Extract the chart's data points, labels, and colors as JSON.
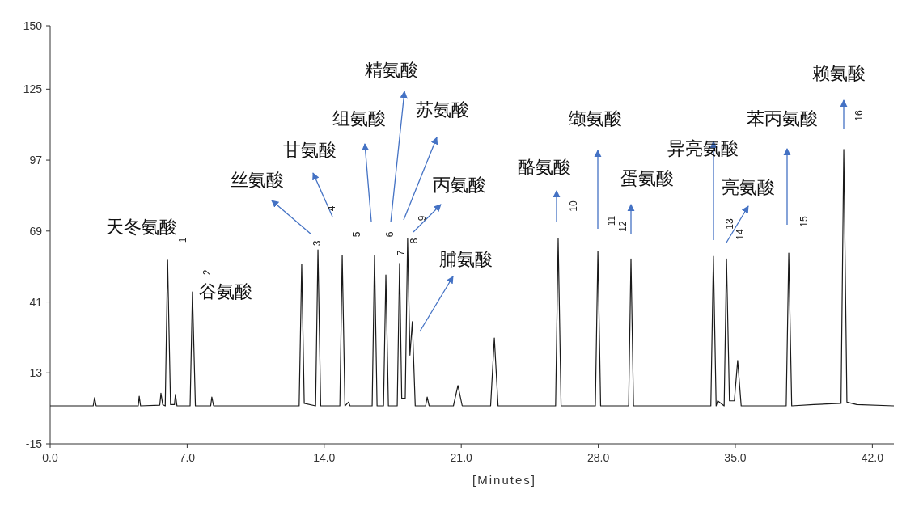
{
  "chart_data": {
    "type": "line",
    "xlabel": "[Minutes]",
    "color": "#1a1a1a",
    "x": [
      0,
      2.2,
      2.27,
      2.35,
      4.5,
      4.55,
      4.62,
      5.6,
      5.66,
      5.75,
      5.88,
      6.0,
      6.15,
      6.35,
      6.4,
      6.48,
      7.15,
      7.27,
      7.42,
      8.2,
      8.26,
      8.35,
      12.72,
      12.85,
      12.98,
      13.56,
      13.68,
      13.82,
      14.8,
      14.92,
      15.06,
      15.24,
      15.32,
      16.45,
      16.57,
      16.7,
      17.03,
      17.15,
      17.28,
      17.73,
      17.85,
      17.96,
      18.14,
      18.26,
      18.38,
      18.5,
      18.65,
      19.18,
      19.26,
      19.36,
      20.6,
      20.83,
      21.05,
      22.5,
      22.69,
      22.88,
      25.82,
      25.95,
      26.1,
      27.85,
      27.98,
      28.12,
      29.55,
      29.67,
      29.8,
      33.75,
      33.88,
      34.02,
      34.1,
      34.43,
      34.55,
      34.7,
      34.95,
      35.12,
      35.3,
      37.6,
      37.73,
      37.88,
      39.0,
      40.4,
      40.54,
      40.7,
      41.2,
      43.1
    ],
    "values": [
      0,
      0,
      3.2,
      0,
      0,
      3.8,
      0,
      0.3,
      5,
      0.5,
      0,
      57.5,
      0.5,
      0.5,
      4.5,
      0,
      0,
      45,
      0,
      0,
      3.5,
      0,
      0,
      55.9,
      1,
      0,
      61.6,
      0,
      0,
      59.4,
      0,
      1.5,
      0,
      0,
      59.4,
      0,
      0,
      51.7,
      0,
      0,
      56.2,
      3,
      3,
      66,
      20,
      33.2,
      0,
      0,
      3.5,
      0,
      0,
      8,
      0,
      0,
      26.8,
      0,
      0,
      66,
      0,
      0,
      61,
      0,
      0,
      58,
      0,
      0,
      59,
      0,
      2,
      0,
      58,
      2,
      2,
      17.9,
      0,
      0,
      60.3,
      0,
      0.5,
      1,
      101.2,
      1.5,
      0.5,
      0
    ],
    "xlim": [
      0,
      43.1
    ],
    "ylim": [
      -15,
      150
    ],
    "xticks": [
      {
        "value": 0,
        "label": "0.0"
      },
      {
        "value": 7,
        "label": "7.0"
      },
      {
        "value": 14,
        "label": "14.0"
      },
      {
        "value": 21,
        "label": "21.0"
      },
      {
        "value": 28,
        "label": "28.0"
      },
      {
        "value": 35,
        "label": "35.0"
      },
      {
        "value": 42,
        "label": "42.0"
      }
    ],
    "yticks": [
      -15,
      13,
      41,
      69,
      97,
      125,
      150
    ],
    "annotations": [
      "天冬氨酸",
      "谷氨酸",
      "丝氨酸",
      "甘氨酸",
      "组氨酸",
      "精氨酸",
      "苏氨酸",
      "丙氨酸",
      "脯氨酸",
      "酪氨酸",
      "缬氨酸",
      "蛋氨酸",
      "异亮氨酸",
      "亮氨酸",
      "苯丙氨酸",
      "赖氨酸",
      "1",
      "2",
      "3",
      "4",
      "5",
      "6",
      "7",
      "8",
      "9",
      "10",
      "11",
      "12",
      "13",
      "14",
      "15",
      "16"
    ]
  }
}
